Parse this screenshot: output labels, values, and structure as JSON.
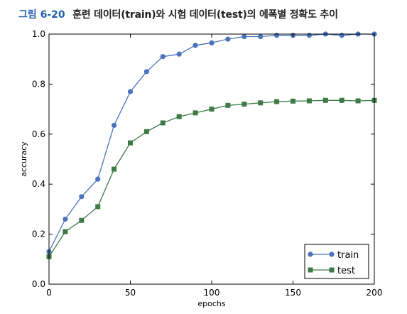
{
  "figure": {
    "number": "그림 6-20",
    "caption": "훈련 데이터(train)와 시험 데이터(test)의 에폭별 정확도 추이"
  },
  "chart_data": {
    "type": "line",
    "title": "",
    "xlabel": "epochs",
    "ylabel": "accuracy",
    "xlim": [
      0,
      200
    ],
    "ylim": [
      0.0,
      1.0
    ],
    "xticks": [
      0,
      50,
      100,
      150,
      200
    ],
    "yticks": [
      0.0,
      0.2,
      0.4,
      0.6,
      0.8,
      1.0
    ],
    "xtick_labels": [
      "0",
      "50",
      "100",
      "150",
      "200"
    ],
    "ytick_labels": [
      "0.0",
      "0.2",
      "0.4",
      "0.6",
      "0.8",
      "1.0"
    ],
    "grid": false,
    "legend": "bottom-right",
    "series": [
      {
        "name": "train",
        "color": "#4a73bb",
        "marker": "circle",
        "x": [
          0,
          10,
          20,
          30,
          40,
          50,
          60,
          70,
          80,
          90,
          100,
          110,
          120,
          130,
          140,
          150,
          160,
          170,
          180,
          190,
          200
        ],
        "y": [
          0.13,
          0.26,
          0.35,
          0.42,
          0.635,
          0.77,
          0.85,
          0.91,
          0.92,
          0.955,
          0.965,
          0.98,
          0.99,
          0.99,
          0.995,
          0.995,
          0.995,
          1.0,
          0.995,
          1.0,
          1.0
        ]
      },
      {
        "name": "test",
        "color": "#3e7a46",
        "marker": "square",
        "x": [
          0,
          10,
          20,
          30,
          40,
          50,
          60,
          70,
          80,
          90,
          100,
          110,
          120,
          130,
          140,
          150,
          160,
          170,
          180,
          190,
          200
        ],
        "y": [
          0.11,
          0.21,
          0.255,
          0.31,
          0.46,
          0.565,
          0.61,
          0.645,
          0.67,
          0.685,
          0.7,
          0.715,
          0.72,
          0.725,
          0.73,
          0.732,
          0.733,
          0.735,
          0.735,
          0.733,
          0.735
        ]
      }
    ]
  }
}
